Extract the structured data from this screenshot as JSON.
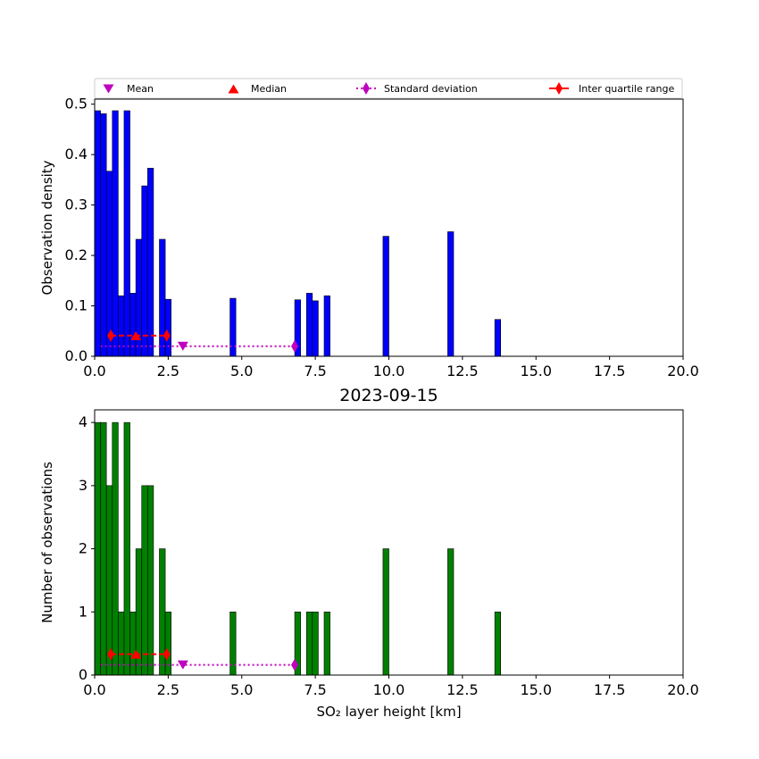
{
  "legend": {
    "items": [
      {
        "label": "Mean",
        "marker": "triangle-down",
        "color": "#bf00bf"
      },
      {
        "label": "Median",
        "marker": "triangle-up",
        "color": "#ff0000"
      },
      {
        "label": "Standard deviation",
        "marker": "diamond-dotted-line",
        "color": "#bf00bf"
      },
      {
        "label": "Inter quartile range",
        "marker": "diamond-dashed-line",
        "color": "#ff0000"
      }
    ]
  },
  "chart_data": [
    {
      "type": "bar",
      "title": "",
      "xlabel": "",
      "ylabel": "Observation density",
      "xlim": [
        0,
        20
      ],
      "ylim": [
        0,
        0.51
      ],
      "xticks": [
        "0.0",
        "2.5",
        "5.0",
        "7.5",
        "10.0",
        "12.5",
        "15.0",
        "17.5",
        "20.0"
      ],
      "yticks": [
        "0.0",
        "0.1",
        "0.2",
        "0.3",
        "0.4",
        "0.5"
      ],
      "bar_color": "#0000ff",
      "bin_width": 0.2,
      "bin_starts": [
        0.0,
        0.2,
        0.4,
        0.6,
        0.8,
        1.0,
        1.2,
        1.4,
        1.6,
        1.8,
        2.2,
        2.4,
        4.6,
        6.8,
        7.2,
        7.4,
        7.8,
        9.8,
        12.0,
        13.6
      ],
      "values": [
        0.487,
        0.481,
        0.367,
        0.487,
        0.12,
        0.487,
        0.125,
        0.232,
        0.338,
        0.373,
        0.232,
        0.113,
        0.115,
        0.112,
        0.125,
        0.11,
        0.12,
        0.238,
        0.247,
        0.073
      ],
      "stats": {
        "y": 0.02,
        "mean": 3.0,
        "std_range": [
          0.2,
          6.8
        ],
        "stat_y": 0.041,
        "median": 1.4,
        "iqr": [
          0.55,
          2.45
        ]
      },
      "legend": "top"
    },
    {
      "type": "bar",
      "title": "2023-09-15",
      "xlabel": "SO₂ layer height [km]",
      "ylabel": "Number of observations",
      "xlim": [
        0,
        20
      ],
      "ylim": [
        0,
        4.2
      ],
      "xticks": [
        "0.0",
        "2.5",
        "5.0",
        "7.5",
        "10.0",
        "12.5",
        "15.0",
        "17.5",
        "20.0"
      ],
      "yticks": [
        "0",
        "1",
        "2",
        "3",
        "4"
      ],
      "bar_color": "#008000",
      "bin_width": 0.2,
      "bin_starts": [
        0.0,
        0.2,
        0.4,
        0.6,
        0.8,
        1.0,
        1.2,
        1.4,
        1.6,
        1.8,
        2.2,
        2.4,
        4.6,
        6.8,
        7.2,
        7.4,
        7.8,
        9.8,
        12.0,
        13.6
      ],
      "values": [
        4,
        4,
        3,
        4,
        1,
        4,
        1,
        2,
        3,
        3,
        2,
        1,
        1,
        1,
        1,
        1,
        1,
        2,
        2,
        1
      ],
      "stats": {
        "y": 0.16,
        "mean": 3.0,
        "std_range": [
          0.2,
          6.8
        ],
        "stat_y": 0.33,
        "median": 1.4,
        "iqr": [
          0.55,
          2.45
        ]
      }
    }
  ]
}
